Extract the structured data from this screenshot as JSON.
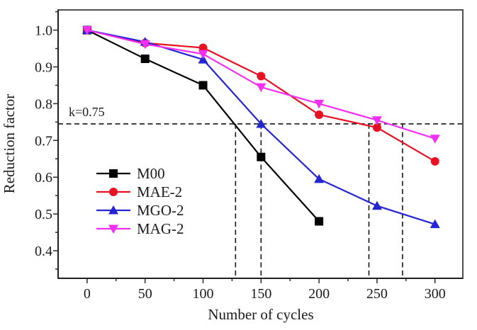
{
  "figure": {
    "background": "#ffffff",
    "frame_color": "#4f4f4f",
    "axis_color": "#1f1f1f",
    "tick_color": "#2a2a2a",
    "dash_color": "#161616",
    "text_color": "#1a1a1a"
  },
  "chart_data": {
    "type": "line",
    "title": "",
    "xlabel": "Number of cycles",
    "ylabel": "Reduction factor",
    "xlim": [
      -25,
      324
    ],
    "ylim": [
      0.325,
      1.055
    ],
    "x_major_ticks": [
      0,
      50,
      100,
      150,
      200,
      250,
      300
    ],
    "x_minor_step": 25,
    "y_major_ticks": [
      0.4,
      0.5,
      0.6,
      0.7,
      0.8,
      0.9,
      1.0
    ],
    "y_minor_step": 0.05,
    "grid": false,
    "legend_position": "inside-left-center",
    "series": [
      {
        "name": "M00",
        "color": "#000000",
        "marker": "square",
        "x": [
          0,
          50,
          100,
          150,
          200
        ],
        "values": [
          1.0,
          0.922,
          0.85,
          0.655,
          0.48
        ]
      },
      {
        "name": "MAE-2",
        "color": "#e81123",
        "marker": "circle",
        "x": [
          0,
          50,
          100,
          150,
          200,
          250,
          300
        ],
        "values": [
          1.0,
          0.965,
          0.952,
          0.875,
          0.77,
          0.735,
          0.643
        ]
      },
      {
        "name": "MGO-2",
        "color": "#2424d4",
        "marker": "triangle-up",
        "x": [
          0,
          50,
          100,
          150,
          200,
          250,
          300
        ],
        "values": [
          1.0,
          0.968,
          0.92,
          0.745,
          0.595,
          0.522,
          0.472
        ]
      },
      {
        "name": "MAG-2",
        "color": "#f42ff4",
        "marker": "triangle-down",
        "x": [
          0,
          50,
          100,
          150,
          200,
          250,
          300
        ],
        "values": [
          1.0,
          0.962,
          0.935,
          0.845,
          0.8,
          0.755,
          0.705
        ]
      }
    ],
    "annotations": {
      "threshold_label": "k=0.75",
      "threshold_value": 0.75,
      "hline_y": 0.745,
      "vlines_x": [
        128,
        150,
        243,
        272
      ]
    }
  }
}
